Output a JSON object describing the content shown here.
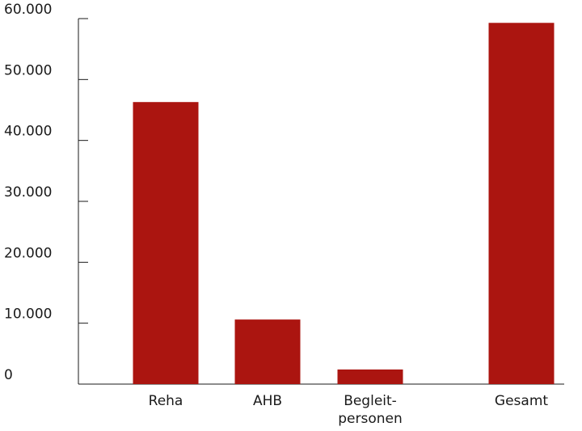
{
  "chart_data": {
    "type": "bar",
    "categories": [
      {
        "lines": [
          "Reha"
        ]
      },
      {
        "lines": [
          "AHB"
        ]
      },
      {
        "lines": [
          "Begleit-",
          "personen"
        ]
      },
      {
        "lines": [
          "Gesamt"
        ]
      }
    ],
    "values": [
      46300,
      10600,
      2400,
      59300
    ],
    "ylim": [
      0,
      60000
    ],
    "yticks": [
      0,
      10000,
      20000,
      30000,
      40000,
      50000,
      60000
    ],
    "ytick_labels": [
      "0",
      "10.000",
      "20.000",
      "30.000",
      "40.000",
      "50.000",
      "60.000"
    ],
    "grid": false,
    "bar_color": "#ab1510",
    "axis_color": "#1a1a1a",
    "title": "",
    "xlabel": "",
    "ylabel": ""
  }
}
